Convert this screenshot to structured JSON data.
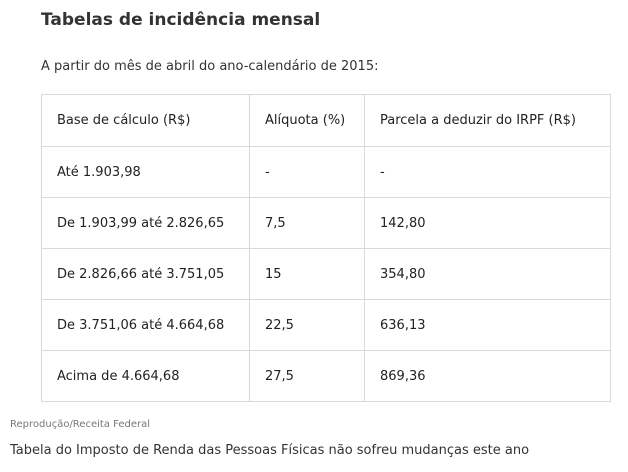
{
  "article": {
    "title": "Tabelas de incidência mensal",
    "subtitle": "A partir do mês de abril do ano-calendário de 2015:",
    "credit": "Reprodução/Receita Federal",
    "caption": "Tabela do Imposto de Renda das Pessoas Físicas não sofreu mudanças este ano"
  },
  "table": {
    "headers": [
      "Base de cálculo (R$)",
      "Alíquota (%)",
      "Parcela a deduzir do IRPF (R$)"
    ],
    "rows": [
      [
        "Até 1.903,98",
        "-",
        "-"
      ],
      [
        "De 1.903,99 até 2.826,65",
        "7,5",
        "142,80"
      ],
      [
        "De 2.826,66 até 3.751,05",
        "15",
        "354,80"
      ],
      [
        "De 3.751,06 até 4.664,68",
        "22,5",
        "636,13"
      ],
      [
        "Acima de 4.664,68",
        "27,5",
        "869,36"
      ]
    ]
  }
}
